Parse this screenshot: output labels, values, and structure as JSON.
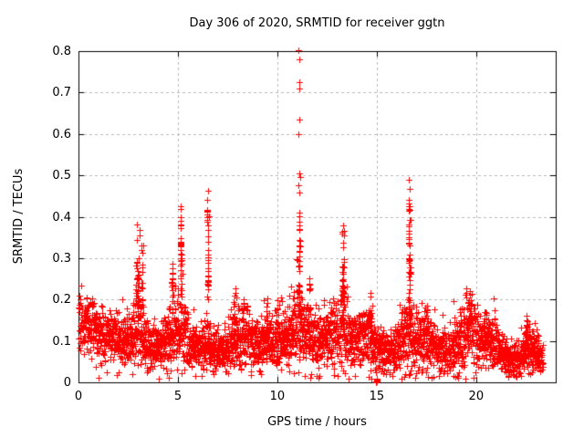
{
  "figure": {
    "background": "#ffffff",
    "border_color": "#000000",
    "text_color": "#000000"
  },
  "chart_data": {
    "type": "scatter",
    "title": "Day 306 of 2020, SRMTID for receiver ggtn",
    "xlabel": "GPS time / hours",
    "ylabel": "SRMTID / TECUs",
    "xlim": [
      0,
      24
    ],
    "ylim": [
      0,
      0.8
    ],
    "xticks": [
      0,
      5,
      10,
      15,
      20
    ],
    "yticks": [
      0,
      0.1,
      0.2,
      0.3,
      0.4,
      0.5,
      0.6,
      0.7,
      0.8
    ],
    "grid": {
      "shown": true,
      "style": "dotted",
      "color": "#b8b8b8"
    },
    "legend": "none",
    "marker": {
      "symbol": "+",
      "color": "#ff0000",
      "size": 7
    },
    "series_name": "SRMTID",
    "sampling": {
      "seed": 306,
      "points_per_hour": 150,
      "x_start": 0.02,
      "x_end": 23.35
    },
    "baseline_envelope": [
      [
        0.0,
        0.155,
        0.04
      ],
      [
        0.5,
        0.14,
        0.035
      ],
      [
        1.0,
        0.12,
        0.032
      ],
      [
        1.5,
        0.115,
        0.03
      ],
      [
        2.0,
        0.1,
        0.03
      ],
      [
        2.6,
        0.105,
        0.032
      ],
      [
        3.0,
        0.13,
        0.05
      ],
      [
        3.3,
        0.1,
        0.04
      ],
      [
        3.6,
        0.085,
        0.028
      ],
      [
        4.2,
        0.085,
        0.028
      ],
      [
        4.7,
        0.115,
        0.045
      ],
      [
        5.15,
        0.13,
        0.05
      ],
      [
        5.6,
        0.09,
        0.03
      ],
      [
        6.1,
        0.08,
        0.028
      ],
      [
        6.5,
        0.1,
        0.04
      ],
      [
        7.0,
        0.072,
        0.024
      ],
      [
        7.5,
        0.08,
        0.03
      ],
      [
        8.0,
        0.105,
        0.04
      ],
      [
        8.5,
        0.1,
        0.032
      ],
      [
        9.0,
        0.09,
        0.03
      ],
      [
        9.5,
        0.1,
        0.034
      ],
      [
        10.0,
        0.1,
        0.038
      ],
      [
        10.5,
        0.11,
        0.04
      ],
      [
        11.0,
        0.14,
        0.055
      ],
      [
        11.3,
        0.13,
        0.045
      ],
      [
        11.6,
        0.115,
        0.04
      ],
      [
        12.0,
        0.1,
        0.035
      ],
      [
        12.5,
        0.105,
        0.035
      ],
      [
        13.0,
        0.125,
        0.045
      ],
      [
        13.5,
        0.115,
        0.04
      ],
      [
        14.0,
        0.1,
        0.035
      ],
      [
        14.5,
        0.115,
        0.04
      ],
      [
        15.0,
        0.085,
        0.03
      ],
      [
        15.5,
        0.072,
        0.025
      ],
      [
        16.0,
        0.08,
        0.03
      ],
      [
        16.5,
        0.12,
        0.05
      ],
      [
        17.0,
        0.1,
        0.04
      ],
      [
        17.5,
        0.105,
        0.038
      ],
      [
        18.0,
        0.082,
        0.03
      ],
      [
        18.6,
        0.08,
        0.03
      ],
      [
        19.2,
        0.095,
        0.035
      ],
      [
        19.7,
        0.125,
        0.04
      ],
      [
        20.2,
        0.115,
        0.038
      ],
      [
        20.7,
        0.1,
        0.035
      ],
      [
        21.2,
        0.075,
        0.028
      ],
      [
        21.7,
        0.058,
        0.02
      ],
      [
        22.1,
        0.055,
        0.02
      ],
      [
        22.5,
        0.085,
        0.03
      ],
      [
        22.9,
        0.082,
        0.028
      ],
      [
        23.35,
        0.065,
        0.022
      ]
    ],
    "spikes": [
      [
        2.95,
        0.07,
        26,
        0.18,
        0.375
      ],
      [
        3.2,
        0.04,
        12,
        0.18,
        0.33
      ],
      [
        4.7,
        0.05,
        10,
        0.14,
        0.3
      ],
      [
        5.15,
        0.04,
        24,
        0.18,
        0.42
      ],
      [
        6.5,
        0.04,
        22,
        0.2,
        0.455
      ],
      [
        7.85,
        0.09,
        10,
        0.14,
        0.26
      ],
      [
        8.3,
        0.05,
        6,
        0.13,
        0.21
      ],
      [
        9.5,
        0.04,
        5,
        0.13,
        0.2
      ],
      [
        10.0,
        0.04,
        6,
        0.13,
        0.21
      ],
      [
        11.1,
        0.04,
        26,
        0.17,
        0.44
      ],
      [
        11.6,
        0.05,
        8,
        0.13,
        0.24
      ],
      [
        12.4,
        0.05,
        5,
        0.12,
        0.19
      ],
      [
        13.3,
        0.05,
        24,
        0.18,
        0.37
      ],
      [
        14.7,
        0.05,
        8,
        0.13,
        0.24
      ],
      [
        16.65,
        0.07,
        32,
        0.16,
        0.43
      ],
      [
        17.5,
        0.07,
        8,
        0.12,
        0.2
      ],
      [
        19.6,
        0.14,
        14,
        0.13,
        0.22
      ],
      [
        22.6,
        0.1,
        8,
        0.1,
        0.17
      ]
    ],
    "zero_cluster": {
      "x": 15.0,
      "xspread": 0.05,
      "n": 12,
      "y_max": 0.013
    },
    "extreme_points": [
      [
        11.08,
        0.802
      ],
      [
        11.1,
        0.78
      ],
      [
        11.09,
        0.725
      ],
      [
        11.11,
        0.71
      ],
      [
        11.09,
        0.635
      ],
      [
        11.07,
        0.6
      ],
      [
        11.1,
        0.505
      ],
      [
        11.13,
        0.495
      ],
      [
        11.08,
        0.475
      ],
      [
        11.11,
        0.458
      ],
      [
        16.62,
        0.49
      ],
      [
        16.65,
        0.468
      ],
      [
        16.6,
        0.44
      ],
      [
        16.68,
        0.425
      ],
      [
        6.51,
        0.462
      ],
      [
        6.49,
        0.44
      ],
      [
        5.14,
        0.425
      ],
      [
        2.93,
        0.382
      ],
      [
        13.29,
        0.38
      ],
      [
        3.42,
        0.025
      ],
      [
        14.9,
        0.03
      ],
      [
        21.9,
        0.018
      ]
    ]
  }
}
